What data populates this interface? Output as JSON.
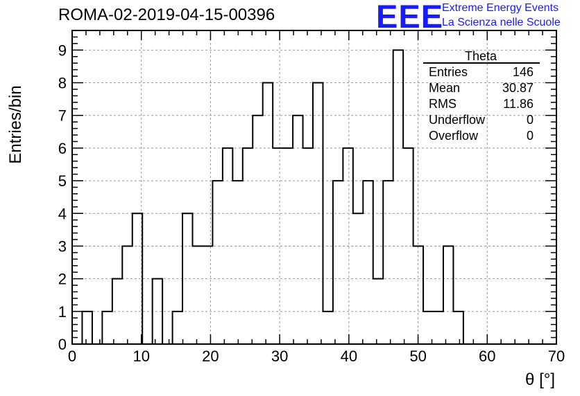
{
  "header": {
    "title": "ROMA-02-2019-04-15-00396",
    "logo_text": "EEE",
    "logo_line1": "Extreme Energy Events",
    "logo_line2": "La Scienza nelle Scuole",
    "logo_color": "#1a1aff"
  },
  "stats_box": {
    "name": "Theta",
    "rows": [
      {
        "label": "Entries",
        "value": "146"
      },
      {
        "label": "Mean",
        "value": "30.87"
      },
      {
        "label": "RMS",
        "value": "11.86"
      },
      {
        "label": "Underflow",
        "value": "0"
      },
      {
        "label": "Overflow",
        "value": "0"
      }
    ]
  },
  "chart_data": {
    "type": "bar",
    "histogram": true,
    "xlabel": "θ [°]",
    "ylabel": "Entries/bin",
    "xlim": [
      0,
      70
    ],
    "ylim": [
      0,
      9.6
    ],
    "bin_width": 1.45,
    "x_start": 1.45,
    "values": [
      1,
      0,
      1,
      2,
      3,
      4,
      0,
      2,
      0,
      1,
      4,
      3,
      3,
      5,
      6,
      5,
      6,
      7,
      8,
      6,
      6,
      7,
      6,
      8,
      1,
      5,
      6,
      4,
      5,
      2,
      5,
      9,
      6,
      3,
      1,
      1,
      3,
      1
    ],
    "x_ticks": [
      "0",
      "10",
      "20",
      "30",
      "40",
      "50",
      "60",
      "70"
    ],
    "y_ticks": [
      "0",
      "1",
      "2",
      "3",
      "4",
      "5",
      "6",
      "7",
      "8",
      "9"
    ],
    "grid": true,
    "legend": "stats box top-right",
    "line_color": "#000000",
    "grid_color": "#999999"
  }
}
